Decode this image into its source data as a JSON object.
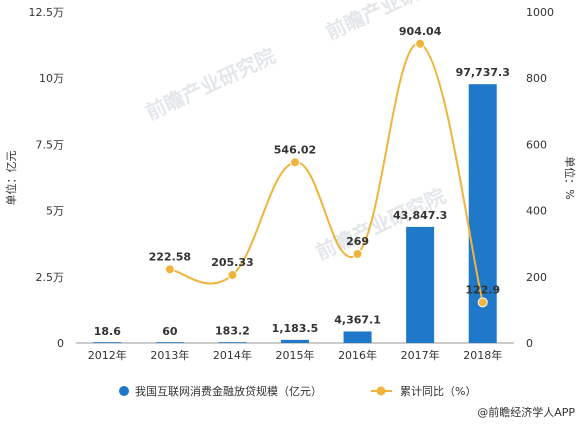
{
  "chart_data": {
    "type": "bar+line",
    "categories": [
      "2012年",
      "2013年",
      "2014年",
      "2015年",
      "2016年",
      "2017年",
      "2018年"
    ],
    "series": [
      {
        "name": "我国互联网消费金融放贷规模（亿元）",
        "type": "bar",
        "axis": "left",
        "color": "#1f78c8",
        "values": [
          18.6,
          60,
          183.2,
          1183.5,
          4367.1,
          43847.3,
          97737.3
        ],
        "labels": [
          "18.6",
          "60",
          "183.2",
          "1,183.5",
          "4,367.1",
          "43,847.3",
          "97,737.3"
        ]
      },
      {
        "name": "累计同比（%）",
        "type": "line",
        "axis": "right",
        "color": "#f0b43c",
        "values": [
          null,
          222.58,
          205.33,
          546.02,
          269,
          904.04,
          122.9
        ],
        "labels": [
          "",
          "222.58",
          "205.33",
          "546.02",
          "269",
          "904.04",
          "122.9"
        ]
      }
    ],
    "ylabel_left": "单位：亿元",
    "ylabel_right": "单位：%",
    "ylim_left": [
      0,
      125000
    ],
    "ylim_right": [
      0,
      1000
    ],
    "yticks_left": [
      "0",
      "2.5万",
      "5万",
      "7.5万",
      "10万",
      "12.5万"
    ],
    "yticks_right": [
      "0",
      "200",
      "400",
      "600",
      "800",
      "1000"
    ],
    "legend_position": "bottom",
    "grid": false
  },
  "source": "@前瞻经济学人APP",
  "watermark": "前瞻产业研究院"
}
